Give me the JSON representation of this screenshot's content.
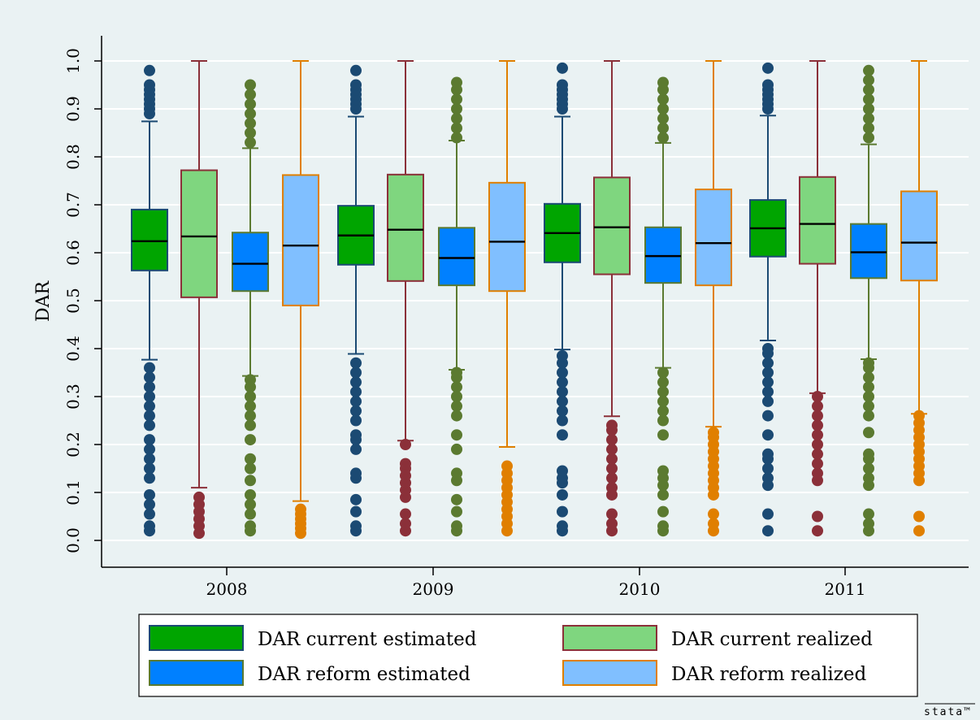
{
  "brand": "stata™",
  "chart_data": {
    "type": "box",
    "ylabel": "DAR",
    "xlabel": "",
    "ylim": [
      0.0,
      1.0
    ],
    "yticks": [
      "0.0",
      "0.1",
      "0.2",
      "0.3",
      "0.4",
      "0.5",
      "0.6",
      "0.7",
      "0.8",
      "0.9",
      "1.0"
    ],
    "grid": true,
    "legend_position": "bottom",
    "categories": [
      "2008",
      "2009",
      "2010",
      "2011"
    ],
    "series": [
      {
        "name": "DAR current estimated",
        "fill": "#00a500",
        "stroke": "#1b4a73",
        "boxes": [
          {
            "q1": 0.563,
            "median": 0.624,
            "q3": 0.69,
            "whisker_low": 0.377,
            "whisker_high": 0.874,
            "outliers": [
              0.02,
              0.03,
              0.055,
              0.075,
              0.095,
              0.13,
              0.15,
              0.17,
              0.19,
              0.21,
              0.24,
              0.26,
              0.28,
              0.3,
              0.32,
              0.34,
              0.36,
              0.89,
              0.9,
              0.91,
              0.92,
              0.93,
              0.94,
              0.95,
              0.98
            ]
          },
          {
            "q1": 0.575,
            "median": 0.636,
            "q3": 0.698,
            "whisker_low": 0.389,
            "whisker_high": 0.884,
            "outliers": [
              0.02,
              0.03,
              0.06,
              0.085,
              0.13,
              0.14,
              0.19,
              0.21,
              0.22,
              0.25,
              0.27,
              0.29,
              0.31,
              0.33,
              0.35,
              0.37,
              0.9,
              0.91,
              0.92,
              0.93,
              0.94,
              0.95,
              0.98
            ]
          },
          {
            "q1": 0.58,
            "median": 0.641,
            "q3": 0.702,
            "whisker_low": 0.398,
            "whisker_high": 0.884,
            "outliers": [
              0.02,
              0.03,
              0.06,
              0.095,
              0.12,
              0.13,
              0.145,
              0.22,
              0.25,
              0.27,
              0.29,
              0.31,
              0.33,
              0.35,
              0.37,
              0.385,
              0.9,
              0.91,
              0.92,
              0.93,
              0.94,
              0.95,
              0.985
            ]
          },
          {
            "q1": 0.592,
            "median": 0.651,
            "q3": 0.71,
            "whisker_low": 0.417,
            "whisker_high": 0.886,
            "outliers": [
              0.02,
              0.055,
              0.115,
              0.13,
              0.15,
              0.17,
              0.18,
              0.22,
              0.26,
              0.29,
              0.31,
              0.33,
              0.35,
              0.37,
              0.39,
              0.4,
              0.9,
              0.91,
              0.92,
              0.93,
              0.94,
              0.95,
              0.985
            ]
          }
        ]
      },
      {
        "name": "DAR current realized",
        "fill": "#7fd67f",
        "stroke": "#8b3039",
        "boxes": [
          {
            "q1": 0.507,
            "median": 0.634,
            "q3": 0.772,
            "whisker_low": 0.11,
            "whisker_high": 1.0,
            "outliers": [
              0.015,
              0.03,
              0.045,
              0.06,
              0.075,
              0.09
            ]
          },
          {
            "q1": 0.541,
            "median": 0.648,
            "q3": 0.763,
            "whisker_low": 0.208,
            "whisker_high": 1.0,
            "outliers": [
              0.02,
              0.035,
              0.055,
              0.09,
              0.105,
              0.12,
              0.135,
              0.15,
              0.16,
              0.2
            ]
          },
          {
            "q1": 0.555,
            "median": 0.653,
            "q3": 0.757,
            "whisker_low": 0.259,
            "whisker_high": 1.0,
            "outliers": [
              0.02,
              0.035,
              0.055,
              0.095,
              0.11,
              0.13,
              0.15,
              0.17,
              0.19,
              0.21,
              0.23,
              0.24
            ]
          },
          {
            "q1": 0.577,
            "median": 0.66,
            "q3": 0.758,
            "whisker_low": 0.307,
            "whisker_high": 1.0,
            "outliers": [
              0.02,
              0.05,
              0.125,
              0.14,
              0.16,
              0.18,
              0.2,
              0.22,
              0.24,
              0.26,
              0.28,
              0.3
            ]
          }
        ]
      },
      {
        "name": "DAR reform estimated",
        "fill": "#0080ff",
        "stroke": "#5b7a30",
        "boxes": [
          {
            "q1": 0.52,
            "median": 0.577,
            "q3": 0.642,
            "whisker_low": 0.343,
            "whisker_high": 0.818,
            "outliers": [
              0.02,
              0.03,
              0.055,
              0.075,
              0.095,
              0.125,
              0.15,
              0.17,
              0.21,
              0.24,
              0.26,
              0.28,
              0.3,
              0.32,
              0.335,
              0.83,
              0.85,
              0.87,
              0.89,
              0.91,
              0.93,
              0.95
            ]
          },
          {
            "q1": 0.532,
            "median": 0.589,
            "q3": 0.652,
            "whisker_low": 0.356,
            "whisker_high": 0.834,
            "outliers": [
              0.02,
              0.03,
              0.06,
              0.085,
              0.125,
              0.14,
              0.19,
              0.22,
              0.26,
              0.28,
              0.3,
              0.32,
              0.34,
              0.35,
              0.84,
              0.86,
              0.88,
              0.9,
              0.92,
              0.94,
              0.955
            ]
          },
          {
            "q1": 0.537,
            "median": 0.593,
            "q3": 0.653,
            "whisker_low": 0.36,
            "whisker_high": 0.829,
            "outliers": [
              0.02,
              0.03,
              0.06,
              0.095,
              0.115,
              0.13,
              0.145,
              0.22,
              0.25,
              0.27,
              0.29,
              0.31,
              0.33,
              0.35,
              0.84,
              0.86,
              0.88,
              0.9,
              0.92,
              0.94,
              0.955
            ]
          },
          {
            "q1": 0.547,
            "median": 0.601,
            "q3": 0.66,
            "whisker_low": 0.378,
            "whisker_high": 0.826,
            "outliers": [
              0.02,
              0.035,
              0.055,
              0.115,
              0.13,
              0.15,
              0.17,
              0.18,
              0.225,
              0.26,
              0.28,
              0.3,
              0.32,
              0.34,
              0.36,
              0.37,
              0.84,
              0.86,
              0.88,
              0.9,
              0.92,
              0.94,
              0.96,
              0.98
            ]
          }
        ]
      },
      {
        "name": "DAR reform realized",
        "fill": "#80bfff",
        "stroke": "#e07f00",
        "boxes": [
          {
            "q1": 0.49,
            "median": 0.615,
            "q3": 0.762,
            "whisker_low": 0.082,
            "whisker_high": 1.0,
            "outliers": [
              0.015,
              0.025,
              0.035,
              0.045,
              0.055,
              0.065
            ]
          },
          {
            "q1": 0.52,
            "median": 0.623,
            "q3": 0.746,
            "whisker_low": 0.195,
            "whisker_high": 1.0,
            "outliers": [
              0.02,
              0.035,
              0.05,
              0.065,
              0.08,
              0.095,
              0.11,
              0.125,
              0.14,
              0.155
            ]
          },
          {
            "q1": 0.532,
            "median": 0.62,
            "q3": 0.732,
            "whisker_low": 0.237,
            "whisker_high": 1.0,
            "outliers": [
              0.02,
              0.035,
              0.055,
              0.095,
              0.11,
              0.125,
              0.14,
              0.155,
              0.17,
              0.185,
              0.2,
              0.215,
              0.225
            ]
          },
          {
            "q1": 0.542,
            "median": 0.621,
            "q3": 0.728,
            "whisker_low": 0.264,
            "whisker_high": 1.0,
            "outliers": [
              0.02,
              0.05,
              0.125,
              0.14,
              0.155,
              0.17,
              0.185,
              0.2,
              0.215,
              0.23,
              0.245,
              0.26
            ]
          }
        ]
      }
    ]
  }
}
